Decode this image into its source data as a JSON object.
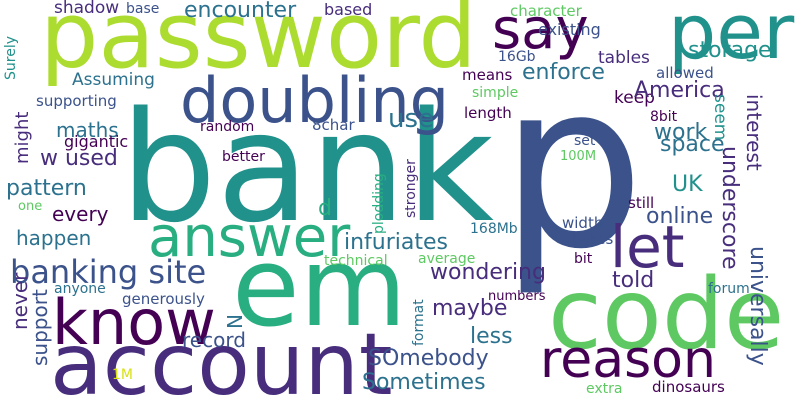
{
  "palette": {
    "deep_purple": "#440154",
    "indigo": "#472d7b",
    "slate_blue": "#3b528b",
    "steel": "#2c728e",
    "teal": "#21918c",
    "sea_green": "#28ae80",
    "green": "#5ec962",
    "lime": "#addc30",
    "yellow": "#d8e219",
    "background": "#ffffff"
  },
  "words": {
    "bank": "bank",
    "p": "p",
    "password": "password",
    "em": "em",
    "code": "code",
    "account": "account",
    "per": "per",
    "doubling": "doubling",
    "know": "know",
    "answer": "answer",
    "say": "say",
    "let": "let",
    "reason": "reason",
    "banking_site": "banking site",
    "shadow": "shadow",
    "base": "base",
    "encounter": "encounter",
    "based": "based",
    "use": "use",
    "character": "character",
    "keep": "keep",
    "existing": "existing",
    "storage": "storage",
    "surely": "Surely",
    "size_16gb": "16Gb",
    "tables": "tables",
    "assuming": "Assuming",
    "means": "means",
    "allowed": "allowed",
    "enforce": "enforce",
    "simple": "simple",
    "america": "America",
    "supporting": "supporting",
    "seem": "seem",
    "might": "might",
    "maths": "maths",
    "length": "length",
    "random": "random",
    "eight_char": "8char",
    "eight_bit": "8bit",
    "work": "work",
    "interest": "interest",
    "gigantic": "gigantic",
    "set": "set",
    "space": "space",
    "w_used": "w used",
    "better": "better",
    "hundred_m": "100M",
    "plodding": "plodding",
    "stronger": "stronger",
    "pattern": "pattern",
    "uk": "UK",
    "underscore": "underscore",
    "every": "every",
    "one": "one",
    "d": "d",
    "still": "still",
    "online": "online",
    "infuriates": "infuriates",
    "width": "width",
    "happen": "happen",
    "size_168mb": "168Mb",
    "bytes": "bytes",
    "wondering": "wondering",
    "told": "told",
    "universally": "universally",
    "technical": "technical",
    "average": "average",
    "bit": "bit",
    "anyone": "anyone",
    "maybe": "maybe",
    "forum": "forum",
    "numbers": "numbers",
    "never": "never",
    "generously": "generously",
    "n": "N",
    "record": "record",
    "less": "less",
    "support": "support",
    "format": "format",
    "somebody": "SOmebody",
    "one_m": "1M",
    "sometimes": "Sometimes",
    "extra": "extra",
    "dinosaurs": "dinosaurs"
  }
}
